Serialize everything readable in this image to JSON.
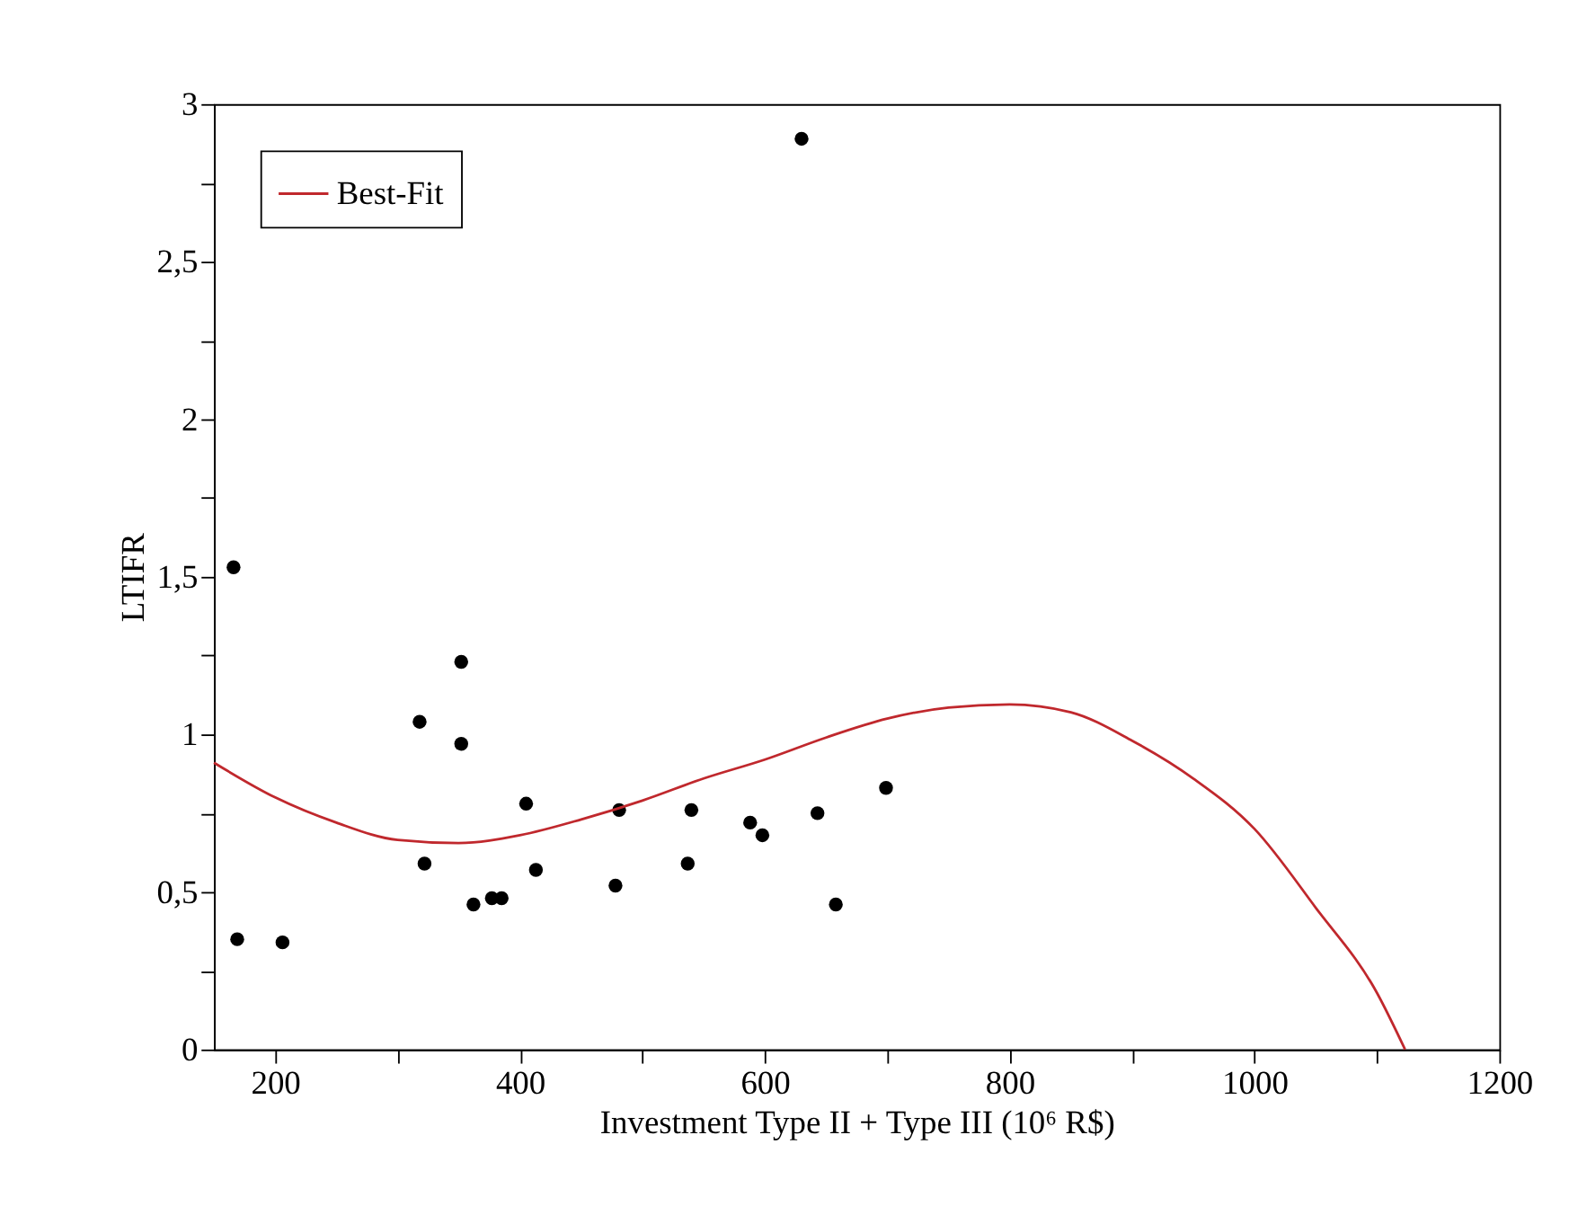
{
  "chart_data": {
    "type": "scatter",
    "xlabel": "Investment  Type II + Type III (10⁶ R$)",
    "ylabel": "LTIFR",
    "xlim": [
      150,
      1200
    ],
    "ylim": [
      0,
      3
    ],
    "xticks": [
      200,
      {
        "value": 300,
        "label": null
      },
      400,
      {
        "value": 500,
        "label": null
      },
      600,
      {
        "value": 700,
        "label": null
      },
      800,
      {
        "value": 900,
        "label": null
      },
      1000,
      {
        "value": 1100,
        "label": null
      },
      1200
    ],
    "yticks": [
      0,
      {
        "value": 0.25,
        "label": null
      },
      {
        "value": 0.5,
        "label": "0,5"
      },
      {
        "value": 0.75,
        "label": null
      },
      1,
      {
        "value": 1.25,
        "label": null
      },
      {
        "value": 1.5,
        "label": "1,5"
      },
      {
        "value": 1.75,
        "label": null
      },
      2,
      {
        "value": 2.25,
        "label": null
      },
      {
        "value": 2.5,
        "label": "2,5"
      },
      {
        "value": 2.75,
        "label": null
      },
      3
    ],
    "grid": false,
    "legend": "top left",
    "marker": "circle",
    "series": [
      {
        "color": "#000000",
        "x": [
          166,
          169,
          206,
          318,
          352,
          352,
          322,
          362,
          377,
          385,
          405,
          413,
          478,
          481,
          537,
          540,
          588,
          598,
          643,
          658,
          699,
          630
        ],
        "values": [
          1.53,
          0.35,
          0.34,
          1.04,
          1.23,
          0.97,
          0.59,
          0.46,
          0.48,
          0.48,
          0.78,
          0.57,
          0.52,
          0.76,
          0.59,
          0.76,
          0.72,
          0.68,
          0.75,
          0.46,
          0.83,
          2.89
        ]
      },
      {
        "type": "line",
        "name": "Best-Fit",
        "color": "#c0282d",
        "marker": "none",
        "line_style": "solid",
        "x": [
          150,
          200,
          250,
          300,
          350,
          400,
          450,
          500,
          550,
          600,
          650,
          700,
          750,
          800,
          850,
          900,
          950,
          1000,
          1050,
          1100,
          1123
        ],
        "values": [
          0.91,
          0.8,
          0.72,
          0.665,
          0.655,
          0.68,
          0.73,
          0.79,
          0.86,
          0.92,
          0.99,
          1.05,
          1.085,
          1.095,
          1.07,
          0.98,
          0.86,
          0.7,
          0.45,
          0.18,
          0
        ]
      }
    ]
  }
}
